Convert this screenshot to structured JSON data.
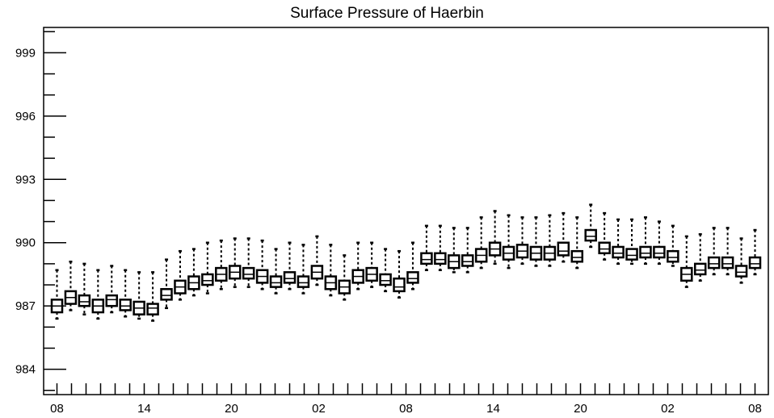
{
  "chart_data": {
    "type": "box",
    "title": "Surface Pressure of Haerbin",
    "xlabel": "",
    "ylabel": "",
    "ylim": [
      982.8,
      1000.2
    ],
    "y_ticks": [
      984,
      987,
      990,
      993,
      996,
      999
    ],
    "x_tick_labels": [
      "08",
      "14",
      "20",
      "02",
      "08",
      "14",
      "20",
      "02",
      "08"
    ],
    "x_tick_label_index": [
      0,
      6,
      12,
      18,
      24,
      30,
      36,
      42,
      48
    ],
    "grid": false,
    "colors": {
      "box": "#000000",
      "box_fill": "#ffffff",
      "frame": "#000000"
    },
    "series": [
      {
        "whisker_low": [
          986.4,
          986.8,
          986.6,
          986.4,
          986.7,
          986.5,
          986.4,
          986.3,
          986.9,
          987.3,
          987.5,
          987.6,
          987.8,
          987.9,
          987.9,
          987.8,
          987.6,
          987.8,
          987.6,
          988.0,
          987.5,
          987.3,
          987.8,
          987.9,
          987.7,
          987.4,
          987.8,
          988.7,
          988.7,
          988.6,
          988.6,
          988.8,
          989.0,
          988.8,
          989.0,
          988.9,
          988.9,
          989.1,
          988.8,
          989.8,
          989.2,
          989.0,
          989.0,
          989.0,
          989.0,
          988.9,
          987.9,
          988.2,
          988.5,
          988.5,
          988.1,
          988.5
        ],
        "q1": [
          986.7,
          987.1,
          987.0,
          986.7,
          987.0,
          986.8,
          986.6,
          986.6,
          987.3,
          987.6,
          987.8,
          988.0,
          988.2,
          988.3,
          988.3,
          988.1,
          987.9,
          988.1,
          987.9,
          988.3,
          987.8,
          987.6,
          988.1,
          988.2,
          988.0,
          987.7,
          988.1,
          989.0,
          989.0,
          988.8,
          988.9,
          989.1,
          989.4,
          989.2,
          989.3,
          989.2,
          989.2,
          989.4,
          989.1,
          990.1,
          989.5,
          989.3,
          989.2,
          989.3,
          989.3,
          989.1,
          988.2,
          988.5,
          988.8,
          988.8,
          988.4,
          988.8
        ],
        "median": [
          987.0,
          987.4,
          987.2,
          987.0,
          987.3,
          987.0,
          986.9,
          986.9,
          987.5,
          987.9,
          988.1,
          988.2,
          988.5,
          988.6,
          988.5,
          988.4,
          988.1,
          988.3,
          988.1,
          988.6,
          988.1,
          987.9,
          988.4,
          988.5,
          988.2,
          987.9,
          988.3,
          989.2,
          989.2,
          989.1,
          989.1,
          989.4,
          989.7,
          989.5,
          989.6,
          989.5,
          989.5,
          989.6,
          989.3,
          990.3,
          989.7,
          989.5,
          989.4,
          989.5,
          989.5,
          989.3,
          988.5,
          988.7,
          989.0,
          989.0,
          988.6,
          989.0
        ],
        "q3": [
          987.3,
          987.7,
          987.5,
          987.3,
          987.5,
          987.3,
          987.2,
          987.1,
          987.8,
          988.2,
          988.4,
          988.5,
          988.8,
          988.9,
          988.8,
          988.7,
          988.4,
          988.6,
          988.4,
          988.9,
          988.4,
          988.2,
          988.7,
          988.8,
          988.5,
          988.3,
          988.6,
          989.5,
          989.5,
          989.4,
          989.4,
          989.7,
          990.0,
          989.8,
          989.9,
          989.8,
          989.8,
          990.0,
          989.6,
          990.6,
          990.0,
          989.8,
          989.7,
          989.8,
          989.8,
          989.6,
          988.8,
          989.0,
          989.3,
          989.3,
          988.9,
          989.3
        ],
        "whisker_high": [
          988.7,
          989.1,
          989.0,
          988.7,
          988.9,
          988.7,
          988.6,
          988.6,
          989.2,
          989.6,
          989.7,
          990.0,
          990.1,
          990.2,
          990.2,
          990.1,
          989.7,
          990.0,
          989.9,
          990.3,
          989.9,
          989.4,
          990.0,
          990.0,
          989.7,
          989.6,
          990.0,
          990.8,
          990.8,
          990.7,
          990.7,
          991.2,
          991.5,
          991.3,
          991.2,
          991.2,
          991.3,
          991.4,
          991.2,
          991.8,
          991.4,
          991.1,
          991.1,
          991.2,
          991.0,
          990.8,
          990.3,
          990.4,
          990.7,
          990.7,
          990.2,
          990.6
        ]
      }
    ]
  }
}
